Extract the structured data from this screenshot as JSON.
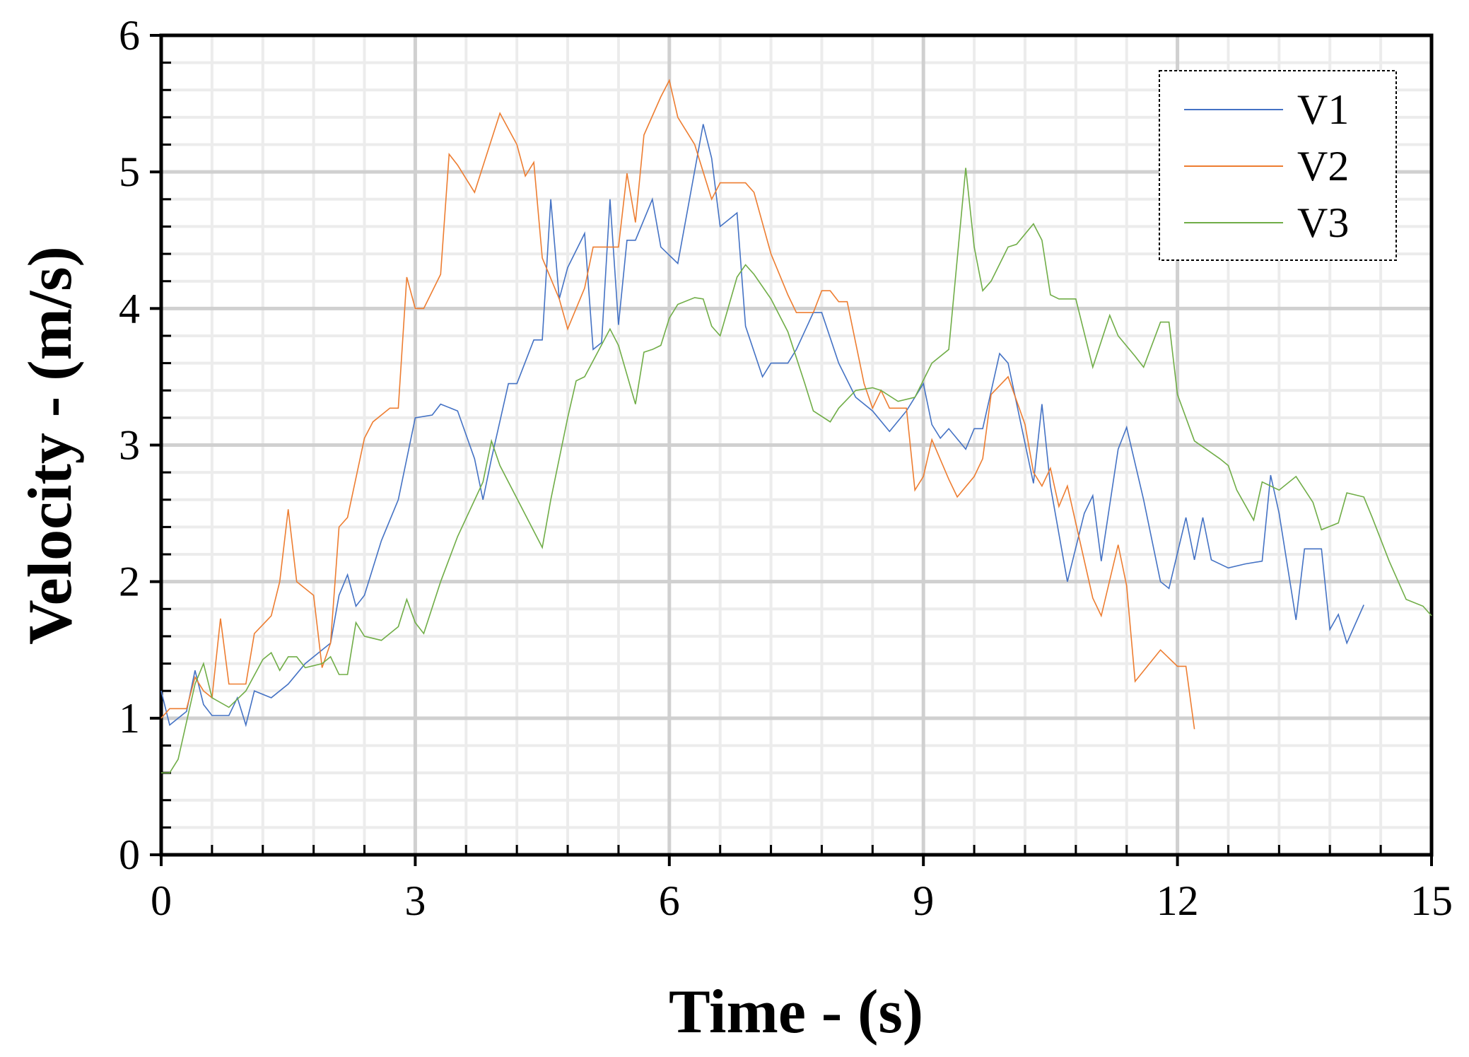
{
  "chart_data": {
    "type": "line",
    "xlabel": "Time - (s)",
    "ylabel": "Velocity - (m/s)",
    "xlim": [
      0,
      15
    ],
    "xticks": [
      0,
      3,
      6,
      9,
      12,
      15
    ],
    "ylim": [
      0,
      6
    ],
    "yticks": [
      0,
      1,
      2,
      3,
      4,
      5,
      6
    ],
    "grid": true,
    "legend": "upper right",
    "series": [
      {
        "name": "V1",
        "color": "#4472c4",
        "x": [
          0,
          0.1,
          0.3,
          0.4,
          0.5,
          0.6,
          0.8,
          0.9,
          1.0,
          1.1,
          1.3,
          1.5,
          1.7,
          1.9,
          2.0,
          2.1,
          2.2,
          2.3,
          2.4,
          2.6,
          2.8,
          3.0,
          3.2,
          3.3,
          3.5,
          3.7,
          3.8,
          3.9,
          4.1,
          4.2,
          4.4,
          4.5,
          4.6,
          4.7,
          4.8,
          5.0,
          5.1,
          5.2,
          5.3,
          5.4,
          5.5,
          5.6,
          5.8,
          5.9,
          6.1,
          6.4,
          6.5,
          6.6,
          6.8,
          6.9,
          7.1,
          7.2,
          7.4,
          7.5,
          7.7,
          7.8,
          8.0,
          8.2,
          8.4,
          8.6,
          8.8,
          9.0,
          9.1,
          9.2,
          9.3,
          9.5,
          9.6,
          9.7,
          9.9,
          10.0,
          10.3,
          10.4,
          10.5,
          10.7,
          10.9,
          11.0,
          11.1,
          11.3,
          11.4,
          11.6,
          11.8,
          11.9,
          12.1,
          12.2,
          12.3,
          12.4,
          12.6,
          12.8,
          13.0,
          13.1,
          13.2,
          13.4,
          13.5,
          13.7,
          13.8,
          13.9,
          14.0,
          14.2
        ],
        "values": [
          1.2,
          0.95,
          1.05,
          1.35,
          1.1,
          1.02,
          1.02,
          1.15,
          0.95,
          1.2,
          1.15,
          1.25,
          1.4,
          1.5,
          1.55,
          1.9,
          2.05,
          1.82,
          1.9,
          2.3,
          2.6,
          3.2,
          3.22,
          3.3,
          3.25,
          2.9,
          2.6,
          2.9,
          3.45,
          3.45,
          3.77,
          3.77,
          4.8,
          4.07,
          4.3,
          4.55,
          3.7,
          3.75,
          4.8,
          3.88,
          4.5,
          4.5,
          4.8,
          4.45,
          4.33,
          5.35,
          5.1,
          4.6,
          4.7,
          3.87,
          3.5,
          3.6,
          3.6,
          3.7,
          3.97,
          3.97,
          3.6,
          3.35,
          3.25,
          3.1,
          3.25,
          3.45,
          3.15,
          3.05,
          3.12,
          2.97,
          3.12,
          3.12,
          3.67,
          3.6,
          2.72,
          3.3,
          2.7,
          2.0,
          2.5,
          2.63,
          2.15,
          2.97,
          3.13,
          2.6,
          2.0,
          1.95,
          2.47,
          2.16,
          2.47,
          2.16,
          2.1,
          2.13,
          2.15,
          2.78,
          2.5,
          1.72,
          2.24,
          2.24,
          1.65,
          1.76,
          1.55,
          1.83
        ]
      },
      {
        "name": "V2",
        "color": "#ed7d31",
        "x": [
          0,
          0.1,
          0.3,
          0.4,
          0.5,
          0.6,
          0.7,
          0.8,
          0.9,
          1.0,
          1.1,
          1.3,
          1.4,
          1.5,
          1.6,
          1.8,
          1.9,
          2.0,
          2.1,
          2.2,
          2.4,
          2.5,
          2.7,
          2.8,
          2.9,
          3.0,
          3.1,
          3.3,
          3.4,
          3.5,
          3.7,
          4.0,
          4.2,
          4.3,
          4.4,
          4.5,
          4.7,
          4.8,
          5.0,
          5.1,
          5.4,
          5.5,
          5.6,
          5.7,
          5.9,
          6.0,
          6.1,
          6.3,
          6.5,
          6.6,
          6.8,
          6.9,
          7.0,
          7.2,
          7.4,
          7.5,
          7.7,
          7.8,
          7.9,
          8.0,
          8.1,
          8.3,
          8.4,
          8.5,
          8.6,
          8.8,
          8.9,
          9.0,
          9.1,
          9.3,
          9.4,
          9.6,
          9.7,
          9.8,
          10.0,
          10.2,
          10.3,
          10.4,
          10.5,
          10.6,
          10.7,
          11.0,
          11.1,
          11.3,
          11.4,
          11.5,
          11.8,
          12.0,
          12.1,
          12.2
        ],
        "values": [
          1.0,
          1.07,
          1.07,
          1.3,
          1.2,
          1.15,
          1.73,
          1.25,
          1.25,
          1.25,
          1.62,
          1.75,
          2.0,
          2.53,
          2.0,
          1.9,
          1.37,
          1.55,
          2.4,
          2.47,
          3.05,
          3.17,
          3.27,
          3.27,
          4.23,
          4.0,
          4.0,
          4.25,
          5.13,
          5.05,
          4.85,
          5.43,
          5.2,
          4.97,
          5.07,
          4.37,
          4.07,
          3.85,
          4.15,
          4.45,
          4.45,
          4.99,
          4.63,
          5.27,
          5.55,
          5.67,
          5.4,
          5.2,
          4.8,
          4.92,
          4.92,
          4.92,
          4.85,
          4.4,
          4.1,
          3.97,
          3.97,
          4.13,
          4.13,
          4.05,
          4.05,
          3.45,
          3.27,
          3.4,
          3.27,
          3.27,
          2.67,
          2.77,
          3.04,
          2.75,
          2.62,
          2.77,
          2.9,
          3.37,
          3.5,
          3.15,
          2.8,
          2.7,
          2.83,
          2.55,
          2.7,
          1.88,
          1.75,
          2.27,
          1.97,
          1.27,
          1.5,
          1.38,
          1.38,
          0.92
        ]
      },
      {
        "name": "V3",
        "color": "#70ad47",
        "x": [
          0,
          0.1,
          0.2,
          0.4,
          0.5,
          0.6,
          0.8,
          1.0,
          1.2,
          1.3,
          1.4,
          1.5,
          1.6,
          1.7,
          1.9,
          2.0,
          2.1,
          2.2,
          2.3,
          2.4,
          2.6,
          2.8,
          2.9,
          3.0,
          3.1,
          3.3,
          3.5,
          3.8,
          3.9,
          4.0,
          4.5,
          4.6,
          4.8,
          4.9,
          5.0,
          5.3,
          5.4,
          5.6,
          5.7,
          5.8,
          5.9,
          6.0,
          6.1,
          6.3,
          6.4,
          6.5,
          6.6,
          6.8,
          6.9,
          7.0,
          7.2,
          7.4,
          7.6,
          7.7,
          7.9,
          8.0,
          8.2,
          8.4,
          8.5,
          8.7,
          8.9,
          9.1,
          9.3,
          9.5,
          9.6,
          9.7,
          9.8,
          10.0,
          10.1,
          10.3,
          10.4,
          10.5,
          10.6,
          10.8,
          11.0,
          11.2,
          11.3,
          11.5,
          11.6,
          11.8,
          11.9,
          12.0,
          12.2,
          12.5,
          12.6,
          12.7,
          12.9,
          13.0,
          13.2,
          13.4,
          13.6,
          13.7,
          13.9,
          14.0,
          14.2,
          14.3,
          14.5,
          14.7,
          14.9,
          15.0
        ],
        "values": [
          0.6,
          0.6,
          0.7,
          1.25,
          1.4,
          1.15,
          1.08,
          1.2,
          1.43,
          1.48,
          1.35,
          1.45,
          1.45,
          1.37,
          1.4,
          1.45,
          1.32,
          1.32,
          1.7,
          1.6,
          1.57,
          1.67,
          1.87,
          1.7,
          1.62,
          2.0,
          2.33,
          2.73,
          3.03,
          2.85,
          2.25,
          2.6,
          3.2,
          3.47,
          3.5,
          3.85,
          3.73,
          3.3,
          3.68,
          3.7,
          3.73,
          3.93,
          4.03,
          4.08,
          4.07,
          3.87,
          3.8,
          4.23,
          4.32,
          4.25,
          4.07,
          3.83,
          3.45,
          3.25,
          3.17,
          3.27,
          3.4,
          3.42,
          3.4,
          3.32,
          3.35,
          3.6,
          3.7,
          5.03,
          4.45,
          4.13,
          4.2,
          4.45,
          4.47,
          4.62,
          4.5,
          4.1,
          4.07,
          4.07,
          3.57,
          3.95,
          3.8,
          3.65,
          3.57,
          3.9,
          3.9,
          3.37,
          3.03,
          2.9,
          2.85,
          2.67,
          2.45,
          2.73,
          2.67,
          2.77,
          2.58,
          2.38,
          2.43,
          2.65,
          2.62,
          2.47,
          2.15,
          1.87,
          1.82,
          1.75
        ]
      }
    ]
  }
}
